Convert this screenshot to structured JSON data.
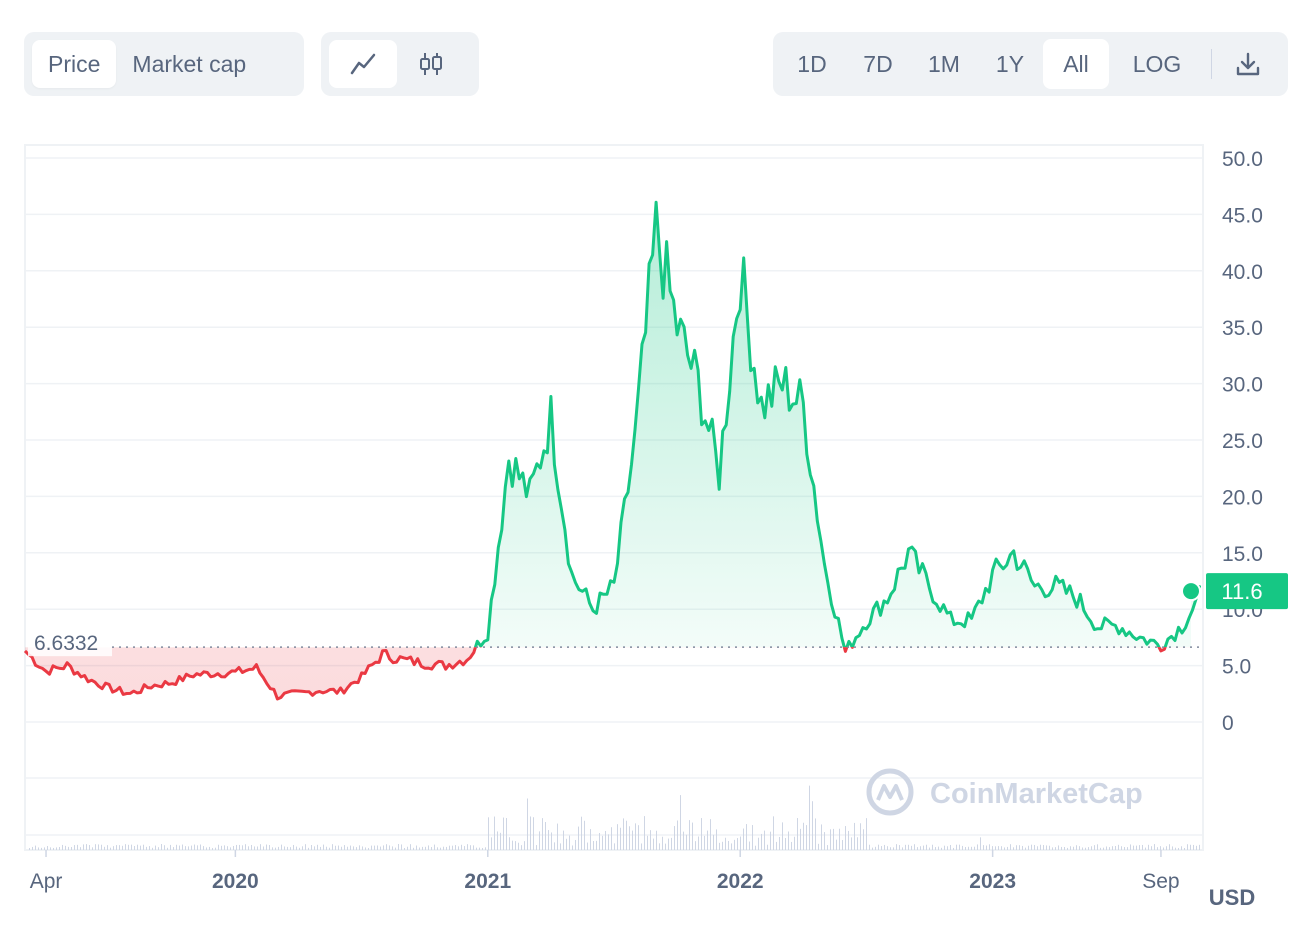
{
  "toolbar": {
    "type_tabs": [
      {
        "label": "Price",
        "active": true
      },
      {
        "label": "Market cap",
        "active": false
      }
    ],
    "style_icons": [
      {
        "icon": "line-chart-icon",
        "active": true
      },
      {
        "icon": "candlestick-icon",
        "active": false
      }
    ],
    "ranges": [
      {
        "label": "1D",
        "active": false
      },
      {
        "label": "7D",
        "active": false
      },
      {
        "label": "1M",
        "active": false
      },
      {
        "label": "1Y",
        "active": false
      },
      {
        "label": "All",
        "active": true
      }
    ],
    "log_label": "LOG",
    "download_icon": "download-icon"
  },
  "colors": {
    "up": "#16c784",
    "down": "#ea3943",
    "grid": "#eff2f5",
    "text": "#58667e",
    "volume": "#cfd6e4",
    "watermark": "#cfd6e4"
  },
  "watermark": "CoinMarketCap",
  "currency": "USD",
  "chart_data": {
    "type": "line",
    "ylim": [
      0,
      50
    ],
    "y_ticks": [
      "0",
      "5.0",
      "10.0",
      "15.0",
      "20.0",
      "25.0",
      "30.0",
      "35.0",
      "40.0",
      "45.0",
      "50.0"
    ],
    "x_ticks": [
      {
        "label": "Apr",
        "date": "2019-04",
        "bold": false
      },
      {
        "label": "2020",
        "date": "2020-01",
        "bold": true
      },
      {
        "label": "2021",
        "date": "2021-01",
        "bold": true
      },
      {
        "label": "2022",
        "date": "2022-01",
        "bold": true
      },
      {
        "label": "2023",
        "date": "2023-01",
        "bold": true
      },
      {
        "label": "Sep",
        "date": "2023-09",
        "bold": false
      }
    ],
    "x_range": [
      "2019-03",
      "2023-11"
    ],
    "baseline_value": 6.6332,
    "baseline_label": "6.6332",
    "current_value": 11.6,
    "current_label": "11.6",
    "series": [
      {
        "x": [
          "2019-03",
          "2019-04",
          "2019-05",
          "2019-06",
          "2019-07",
          "2019-08",
          "2019-09",
          "2019-10",
          "2019-11",
          "2019-12",
          "2020-01",
          "2020-02",
          "2020-03",
          "2020-04",
          "2020-05",
          "2020-06",
          "2020-07",
          "2020-08",
          "2020-09",
          "2020-10",
          "2020-11",
          "2020-12",
          "2021-01",
          "2021-02",
          "2021-03",
          "2021-04",
          "2021-05",
          "2021-06",
          "2021-07",
          "2021-08",
          "2021-09",
          "2021-10",
          "2021-11",
          "2021-12",
          "2022-01",
          "2022-02",
          "2022-03",
          "2022-04",
          "2022-05",
          "2022-06",
          "2022-07",
          "2022-08",
          "2022-09",
          "2022-10",
          "2022-11",
          "2022-12",
          "2023-01",
          "2023-02",
          "2023-03",
          "2023-04",
          "2023-05",
          "2023-06",
          "2023-07",
          "2023-08",
          "2023-09",
          "2023-10",
          "2023-11"
        ],
        "y": [
          6.3,
          4.5,
          5.0,
          3.8,
          3.0,
          2.5,
          3.2,
          3.5,
          4.2,
          4.3,
          4.4,
          4.8,
          2.3,
          2.5,
          2.8,
          2.7,
          4.0,
          6.0,
          5.5,
          5.2,
          5.0,
          5.6,
          8.0,
          23.5,
          20.0,
          27.0,
          13.0,
          10.0,
          12.0,
          25.0,
          43.5,
          35.0,
          30.0,
          22.0,
          40.0,
          28.0,
          30.0,
          28.0,
          14.0,
          6.2,
          9.0,
          11.0,
          15.0,
          12.0,
          9.0,
          9.0,
          13.0,
          15.0,
          12.0,
          12.0,
          11.0,
          8.5,
          8.5,
          7.5,
          6.8,
          8.5,
          11.6
        ]
      }
    ]
  }
}
